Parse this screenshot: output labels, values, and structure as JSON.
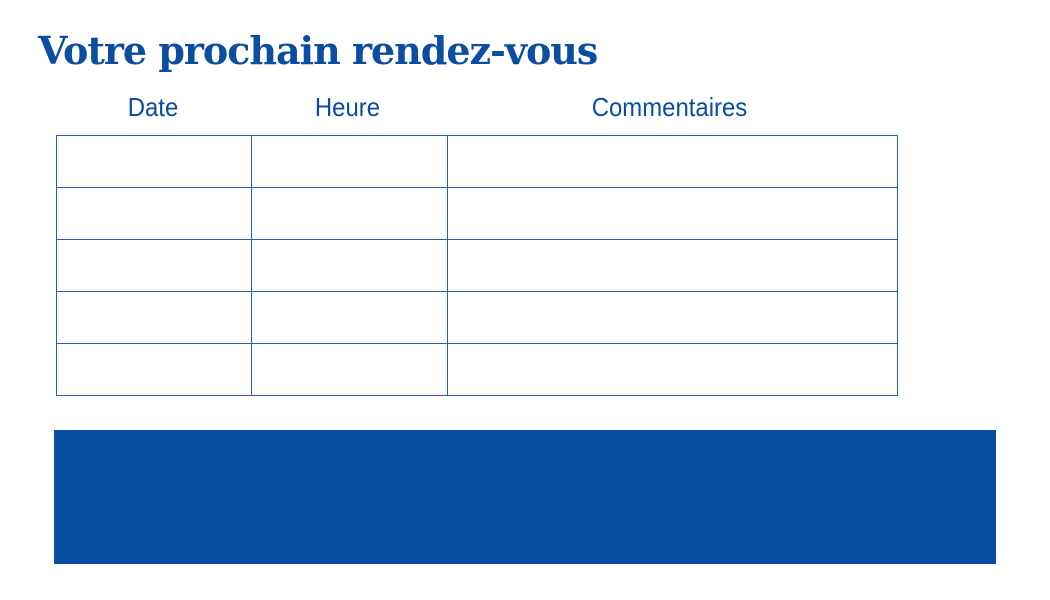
{
  "title": "Votre prochain rendez-vous",
  "table": {
    "columns": [
      "Date",
      "Heure",
      "Commentaires"
    ],
    "rows": [
      [
        "",
        "",
        ""
      ],
      [
        "",
        "",
        ""
      ],
      [
        "",
        "",
        ""
      ],
      [
        "",
        "",
        ""
      ],
      [
        "",
        "",
        ""
      ]
    ]
  },
  "colors": {
    "brand": "#0a4da1",
    "banner": "#084ea0"
  }
}
